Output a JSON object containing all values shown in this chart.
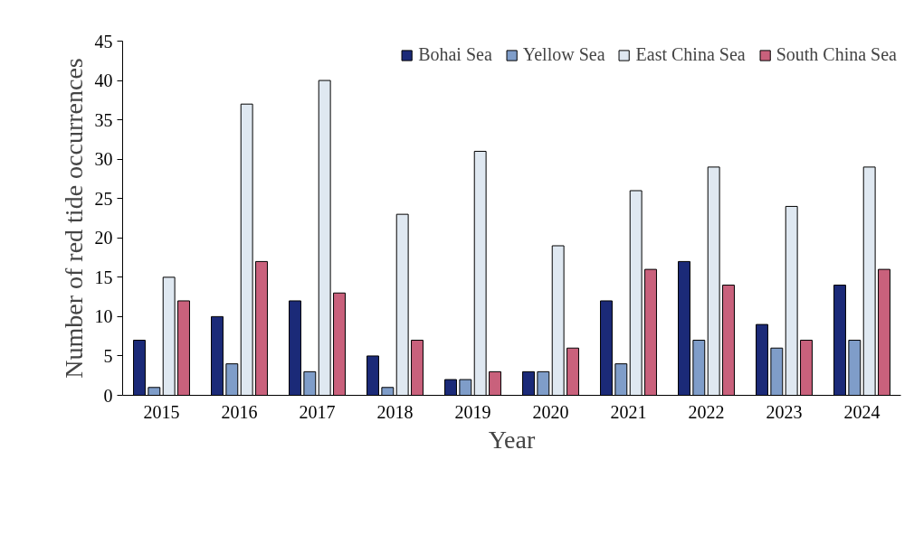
{
  "chart_data": {
    "type": "bar",
    "xlabel": "Year",
    "ylabel": "Number of red tide occurrences",
    "categories": [
      "2015",
      "2016",
      "2017",
      "2018",
      "2019",
      "2020",
      "2021",
      "2022",
      "2023",
      "2024"
    ],
    "series": [
      {
        "name": "Bohai Sea",
        "color": "#1b2a78",
        "values": [
          7,
          10,
          12,
          5,
          2,
          3,
          12,
          17,
          9,
          14
        ]
      },
      {
        "name": "Yellow Sea",
        "color": "#7f9dc9",
        "values": [
          1,
          4,
          3,
          1,
          2,
          3,
          4,
          7,
          6,
          7
        ]
      },
      {
        "name": "East China Sea",
        "color": "#dfe8f1",
        "values": [
          15,
          37,
          40,
          23,
          31,
          19,
          26,
          29,
          24,
          29
        ]
      },
      {
        "name": "South China Sea",
        "color": "#c9617c",
        "values": [
          12,
          17,
          13,
          7,
          3,
          6,
          16,
          14,
          7,
          16
        ]
      }
    ],
    "ylim": [
      0,
      45
    ],
    "yticks": [
      0,
      5,
      10,
      15,
      20,
      25,
      30,
      35,
      40,
      45
    ],
    "grid": false,
    "legend": "top right"
  }
}
